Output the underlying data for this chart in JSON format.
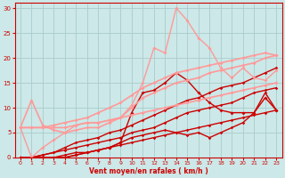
{
  "bg_color": "#cce8e8",
  "grid_color": "#aacccc",
  "xlabel": "Vent moyen/en rafales ( km/h )",
  "xlim": [
    -0.5,
    23.5
  ],
  "ylim": [
    0,
    31
  ],
  "yticks": [
    0,
    5,
    10,
    15,
    20,
    25,
    30
  ],
  "xticks": [
    0,
    1,
    2,
    3,
    4,
    5,
    6,
    7,
    8,
    9,
    10,
    11,
    12,
    13,
    14,
    15,
    16,
    17,
    18,
    19,
    20,
    21,
    22,
    23
  ],
  "series": [
    {
      "x": [
        0,
        1,
        2,
        3,
        4,
        5,
        6,
        7,
        8,
        9,
        10,
        11,
        12,
        13,
        14,
        15,
        16,
        17,
        18,
        19,
        20,
        21,
        22,
        23
      ],
      "y": [
        0,
        0,
        0,
        0,
        0.5,
        1,
        1,
        1.5,
        2,
        2.5,
        3,
        3.5,
        4,
        4.5,
        5,
        5.5,
        6,
        6.5,
        7,
        7.5,
        8,
        8.5,
        9,
        9.5
      ],
      "color": "#cc0000",
      "lw": 1.0,
      "marker": "D",
      "ms": 1.8,
      "alpha": 1.0
    },
    {
      "x": [
        0,
        1,
        2,
        3,
        4,
        5,
        6,
        7,
        8,
        9,
        10,
        11,
        12,
        13,
        14,
        15,
        16,
        17,
        18,
        19,
        20,
        21,
        22,
        23
      ],
      "y": [
        0,
        0,
        0.5,
        1,
        1.5,
        2,
        2.5,
        3,
        3.5,
        4,
        5,
        5.5,
        6,
        7,
        8,
        9,
        9.5,
        10,
        10.5,
        11,
        12,
        13,
        13.5,
        14
      ],
      "color": "#cc0000",
      "lw": 1.0,
      "marker": "D",
      "ms": 1.8,
      "alpha": 1.0
    },
    {
      "x": [
        0,
        1,
        2,
        3,
        4,
        5,
        6,
        7,
        8,
        9,
        10,
        11,
        12,
        13,
        14,
        15,
        16,
        17,
        18,
        19,
        20,
        21,
        22,
        23
      ],
      "y": [
        0,
        0,
        0.5,
        1,
        2,
        3,
        3.5,
        4,
        5,
        5.5,
        6.5,
        7.5,
        8.5,
        9.5,
        10.5,
        11.5,
        12,
        13,
        14,
        14.5,
        15,
        16,
        17,
        18
      ],
      "color": "#cc0000",
      "lw": 1.0,
      "marker": "D",
      "ms": 1.8,
      "alpha": 1.0
    },
    {
      "x": [
        0,
        1,
        2,
        3,
        4,
        5,
        6,
        7,
        8,
        9,
        10,
        11,
        12,
        13,
        14,
        15,
        16,
        17,
        18,
        19,
        20,
        21,
        22,
        23
      ],
      "y": [
        0,
        0,
        0,
        0,
        0,
        0.5,
        1,
        1.5,
        2,
        3,
        9,
        13,
        13.5,
        15,
        17,
        15.5,
        13,
        11,
        9.5,
        9,
        9,
        9,
        12,
        9.5
      ],
      "color": "#cc0000",
      "lw": 1.0,
      "marker": "D",
      "ms": 2.0,
      "alpha": 1.0
    },
    {
      "x": [
        0,
        1,
        2,
        3,
        4,
        5,
        6,
        7,
        8,
        9,
        10,
        11,
        12,
        13,
        14,
        15,
        16,
        17,
        18,
        19,
        20,
        21,
        22,
        23
      ],
      "y": [
        0,
        0,
        0,
        0,
        0,
        0.5,
        1,
        1.5,
        2,
        3,
        4,
        4.5,
        5,
        5.5,
        5,
        4.5,
        5,
        4,
        5,
        6,
        7,
        9,
        13,
        9.5
      ],
      "color": "#cc0000",
      "lw": 1.0,
      "marker": "D",
      "ms": 1.8,
      "alpha": 1.0
    },
    {
      "x": [
        0,
        1,
        2,
        3,
        4,
        5,
        6,
        7,
        8,
        9,
        10,
        11,
        12,
        13,
        14,
        15,
        16,
        17,
        18,
        19,
        20,
        21,
        22,
        23
      ],
      "y": [
        6,
        6,
        6,
        6,
        6,
        6.5,
        7,
        7,
        7.5,
        8,
        8.5,
        9,
        9.5,
        10,
        10.5,
        11,
        11.5,
        12,
        12.5,
        13,
        13.5,
        14,
        14.5,
        15
      ],
      "color": "#ff9999",
      "lw": 1.2,
      "marker": "D",
      "ms": 2.0,
      "alpha": 1.0
    },
    {
      "x": [
        0,
        1,
        2,
        3,
        4,
        5,
        6,
        7,
        8,
        9,
        10,
        11,
        12,
        13,
        14,
        15,
        16,
        17,
        18,
        19,
        20,
        21,
        22,
        23
      ],
      "y": [
        6,
        6,
        6,
        6.5,
        7,
        7.5,
        8,
        9,
        10,
        11,
        12.5,
        14,
        15,
        16,
        17,
        17.5,
        18,
        18.5,
        19,
        19.5,
        20,
        20.5,
        21,
        20.5
      ],
      "color": "#ff9999",
      "lw": 1.2,
      "marker": "D",
      "ms": 2.0,
      "alpha": 1.0
    },
    {
      "x": [
        0,
        1,
        2,
        3,
        4,
        5,
        6,
        7,
        8,
        9,
        10,
        11,
        12,
        13,
        14,
        15,
        16,
        17,
        18,
        19,
        20,
        21,
        22,
        23
      ],
      "y": [
        6,
        0,
        2,
        3.5,
        5,
        6.5,
        7,
        7,
        7.5,
        8,
        10.5,
        15,
        22,
        21,
        30,
        27.5,
        24,
        22,
        18,
        16,
        18,
        16,
        15.5,
        17.5
      ],
      "color": "#ff9999",
      "lw": 1.0,
      "marker": "D",
      "ms": 2.0,
      "alpha": 1.0
    },
    {
      "x": [
        0,
        1,
        2,
        3,
        4,
        5,
        6,
        7,
        8,
        9,
        10,
        11,
        12,
        13,
        14,
        15,
        16,
        17,
        18,
        19,
        20,
        21,
        22,
        23
      ],
      "y": [
        6,
        11.5,
        6.5,
        5.5,
        5,
        5.5,
        6,
        6,
        7,
        8,
        10,
        12,
        13,
        14,
        15,
        15.5,
        16,
        17,
        17.5,
        18,
        18.5,
        19,
        20,
        20.5
      ],
      "color": "#ff9999",
      "lw": 1.2,
      "marker": "D",
      "ms": 2.0,
      "alpha": 1.0
    }
  ]
}
